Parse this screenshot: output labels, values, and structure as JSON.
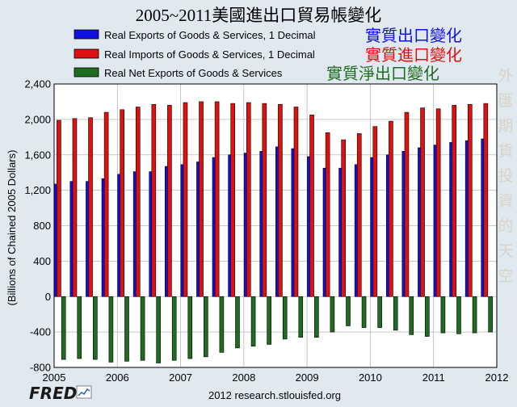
{
  "title": "2005~2011美國進出口貿易帳變化",
  "source": "2012 research.stlouisfed.org",
  "logo": "FRED",
  "watermark": "外匯期貨投資的天空",
  "colors": {
    "background": "#e1e9f0",
    "plot_bg": "#ffffff",
    "exports": "#1010e0",
    "imports": "#e01010",
    "net": "#1f6b1f",
    "grid": "#b8b8b8"
  },
  "chart_data": {
    "type": "bar",
    "ylabel": "(Billions of Chained 2005 Dollars)",
    "ylim": [
      -800,
      2400
    ],
    "yticks": [
      2400,
      2000,
      1600,
      1200,
      800,
      400,
      0,
      -400,
      -800
    ],
    "ytick_labels": [
      "2,400",
      "2,000",
      "1,600",
      "1,200",
      "800",
      "400",
      "0",
      "-400",
      "-800"
    ],
    "xlim": [
      2005,
      2012
    ],
    "xticks": [
      "2005",
      "2006",
      "2007",
      "2008",
      "2009",
      "2010",
      "2011",
      "2012"
    ],
    "grid": true,
    "legend_placement": "top",
    "categories": [
      "2005Q1",
      "2005Q2",
      "2005Q3",
      "2005Q4",
      "2006Q1",
      "2006Q2",
      "2006Q3",
      "2006Q4",
      "2007Q1",
      "2007Q2",
      "2007Q3",
      "2007Q4",
      "2008Q1",
      "2008Q2",
      "2008Q3",
      "2008Q4",
      "2009Q1",
      "2009Q2",
      "2009Q3",
      "2009Q4",
      "2010Q1",
      "2010Q2",
      "2010Q3",
      "2010Q4",
      "2011Q1",
      "2011Q2",
      "2011Q3",
      "2011Q4"
    ],
    "series": [
      {
        "name": "Real Exports of Goods & Services, 1 Decimal",
        "label_cn": "實質出口變化",
        "values": [
          1270,
          1300,
          1300,
          1330,
          1380,
          1410,
          1410,
          1470,
          1490,
          1520,
          1570,
          1600,
          1620,
          1640,
          1690,
          1670,
          1580,
          1450,
          1450,
          1490,
          1570,
          1600,
          1640,
          1680,
          1710,
          1740,
          1760,
          1780
        ]
      },
      {
        "name": "Real Imports of Goods & Services, 1 Decimal",
        "label_cn": "實質進口變化",
        "values": [
          1990,
          2010,
          2020,
          2080,
          2110,
          2140,
          2170,
          2160,
          2190,
          2200,
          2200,
          2180,
          2190,
          2180,
          2170,
          2140,
          2050,
          1850,
          1770,
          1840,
          1920,
          1980,
          2080,
          2130,
          2120,
          2160,
          2170,
          2180
        ]
      },
      {
        "name": "Real Net Exports of Goods & Services",
        "label_cn": "實質淨出口變化",
        "values": [
          -710,
          -700,
          -710,
          -740,
          -730,
          -720,
          -750,
          -720,
          -700,
          -680,
          -630,
          -580,
          -560,
          -540,
          -480,
          -460,
          -460,
          -400,
          -330,
          -350,
          -350,
          -380,
          -430,
          -450,
          -410,
          -420,
          -410,
          -400
        ]
      }
    ]
  }
}
